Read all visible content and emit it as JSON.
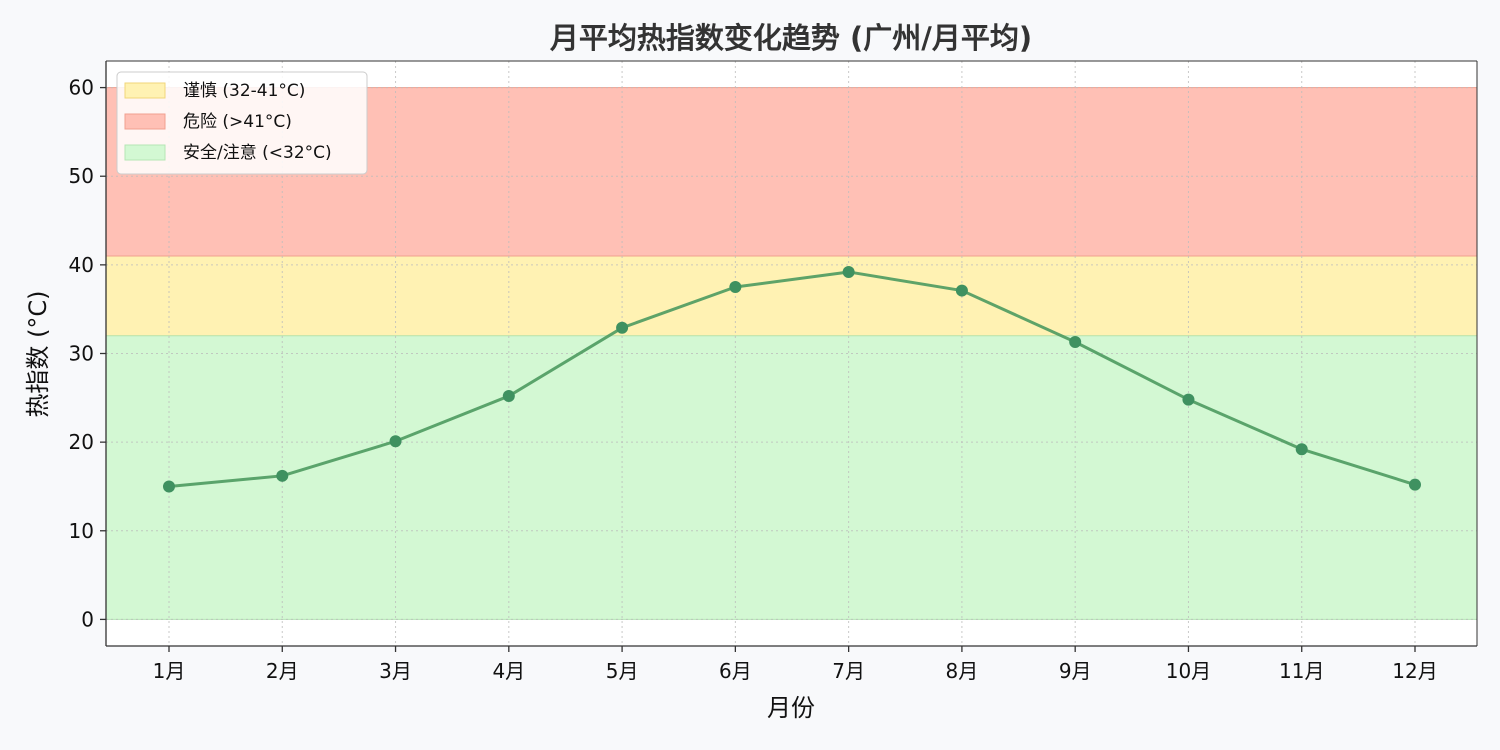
{
  "chart_data": {
    "type": "line",
    "title": "月平均热指数变化趋势 (广州/月平均)",
    "xlabel": "月份",
    "ylabel": "热指数 (°C)",
    "categories": [
      "1月",
      "2月",
      "3月",
      "4月",
      "5月",
      "6月",
      "7月",
      "8月",
      "9月",
      "10月",
      "11月",
      "12月"
    ],
    "series": [
      {
        "name": "",
        "values": [
          15.0,
          16.2,
          20.1,
          25.2,
          32.9,
          37.5,
          39.2,
          37.1,
          31.3,
          24.8,
          19.2,
          15.2
        ],
        "color": "#4c9a5f"
      }
    ],
    "ylim": [
      -3,
      63
    ],
    "yticks": [
      0,
      10,
      20,
      30,
      40,
      50,
      60
    ],
    "grid": true,
    "legend_position": "top-left",
    "bands": [
      {
        "label": "谨慎 (32-41°C)",
        "from": 32,
        "to": 41,
        "color": "#fff2b3",
        "edge": "#f0d67a"
      },
      {
        "label": "危险 (>41°C)",
        "from": 41,
        "to": 60,
        "color": "#ffc0b5",
        "edge": "#f2a08f"
      },
      {
        "label": "安全/注意 (<32°C)",
        "from": 0,
        "to": 32,
        "color": "#d3f8d3",
        "edge": "#b5e6b5"
      }
    ]
  }
}
